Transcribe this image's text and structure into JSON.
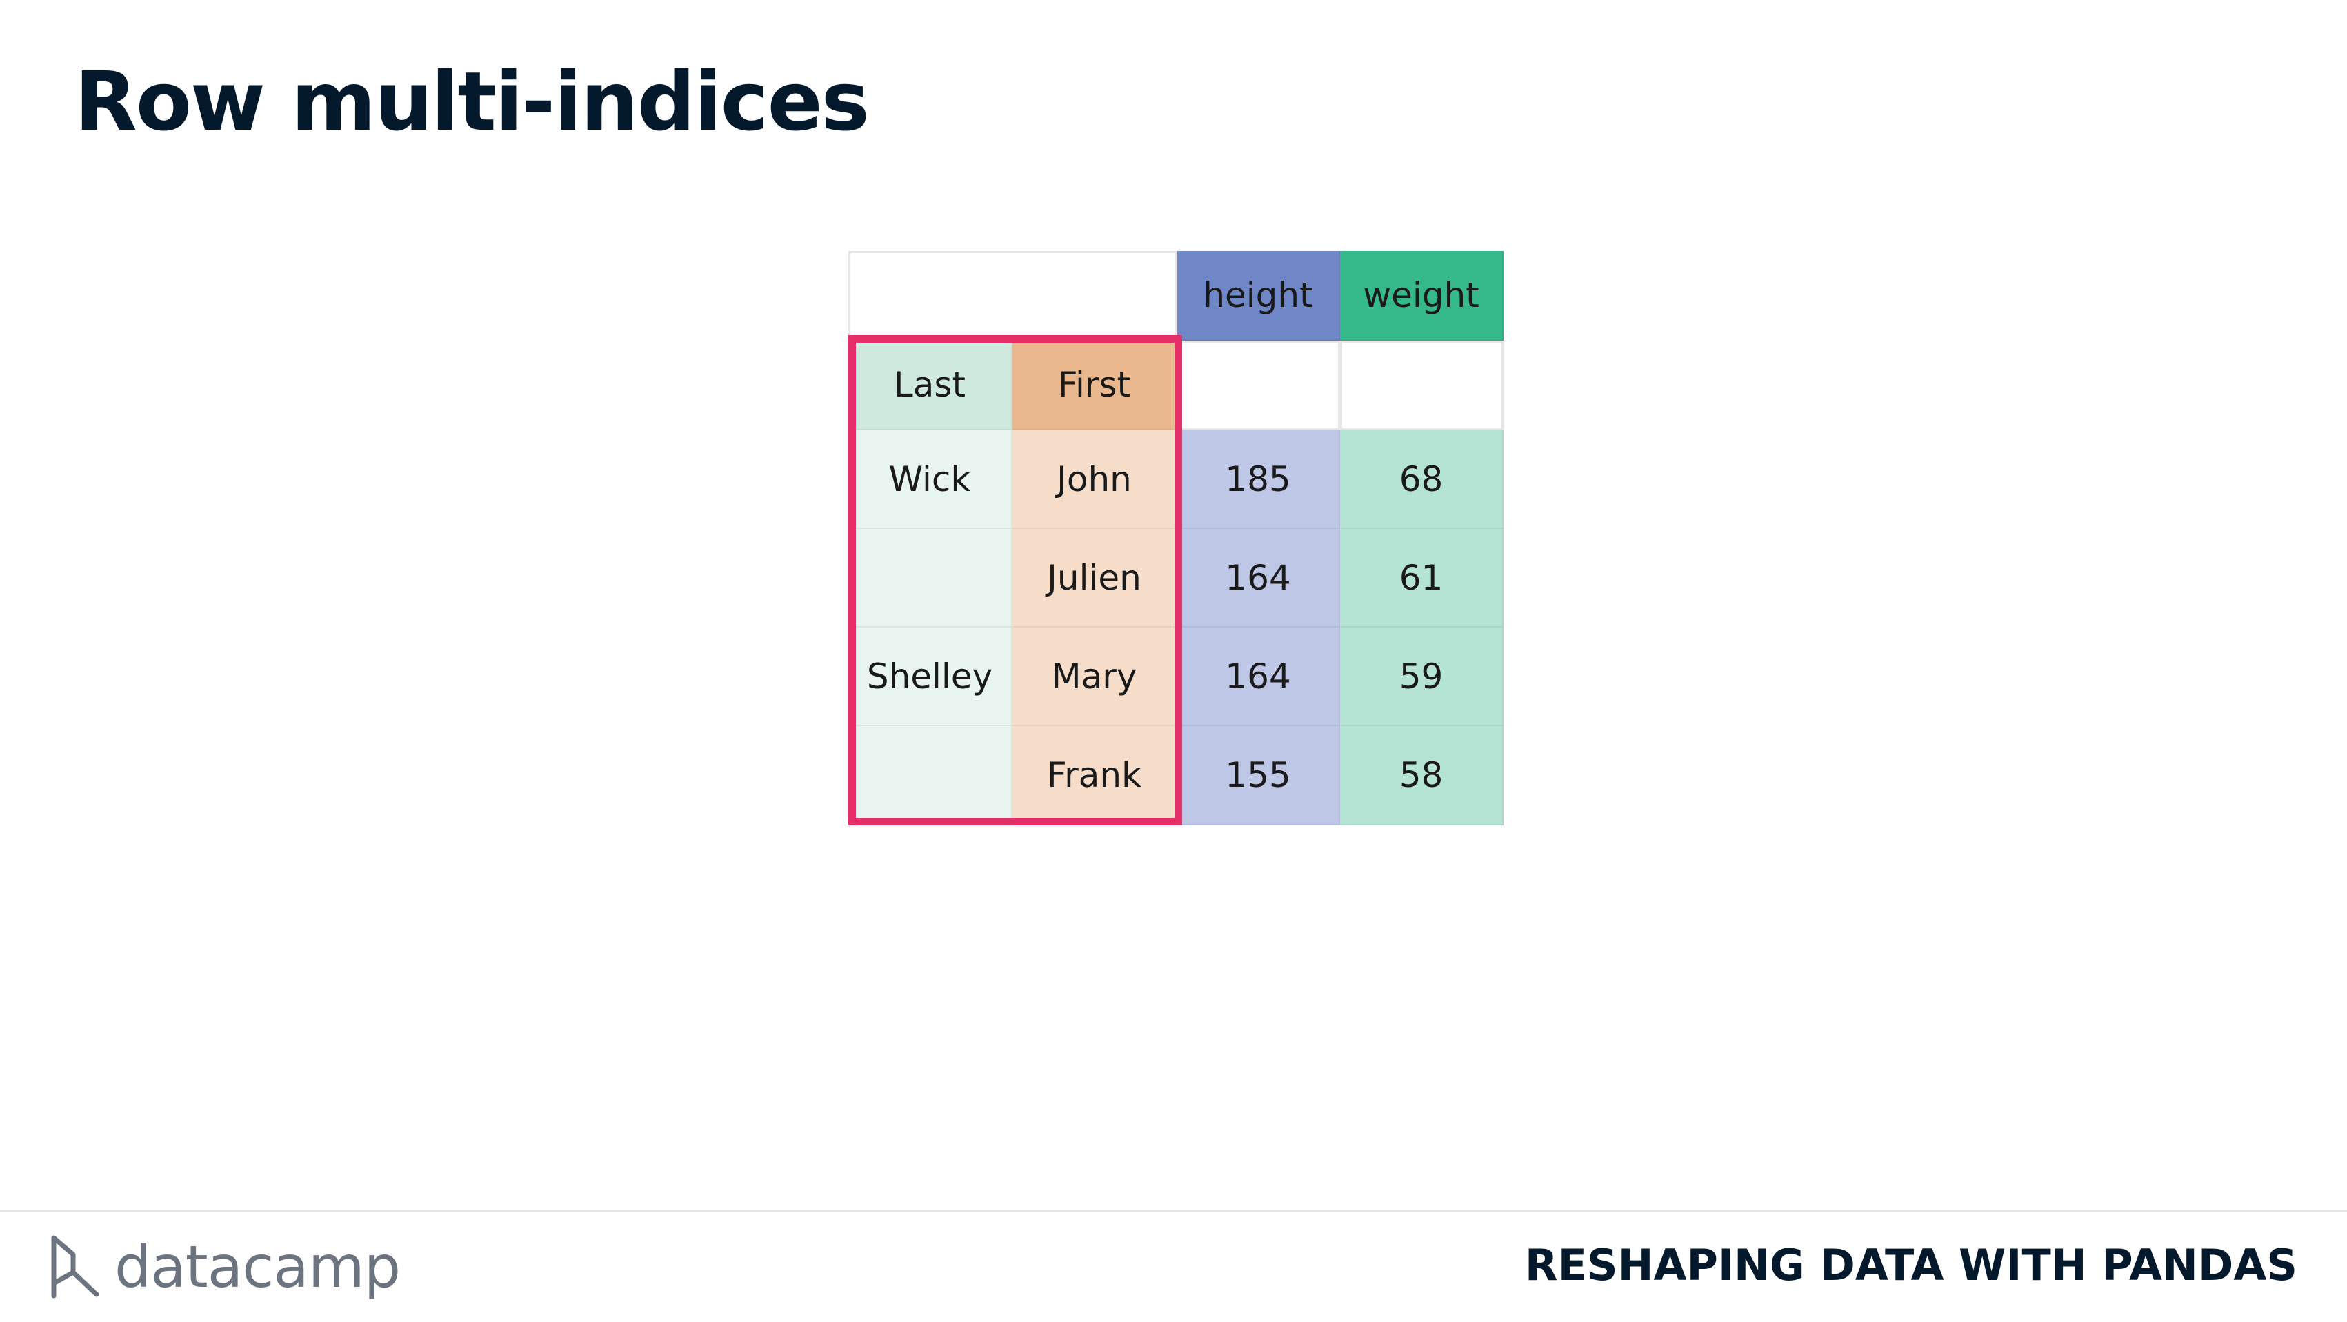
{
  "slide": {
    "title": "Row multi-indices"
  },
  "table": {
    "column_headers": {
      "height": "height",
      "weight": "weight"
    },
    "index_headers": {
      "last": "Last",
      "first": "First"
    },
    "rows": [
      {
        "last": "Wick",
        "first": "John",
        "height": "185",
        "weight": "68"
      },
      {
        "last": "",
        "first": "Julien",
        "height": "164",
        "weight": "61"
      },
      {
        "last": "Shelley",
        "first": "Mary",
        "height": "164",
        "weight": "59"
      },
      {
        "last": "",
        "first": "Frank",
        "height": "155",
        "weight": "58"
      }
    ],
    "colors": {
      "height_header": "#6f87c6",
      "weight_header": "#35b98a",
      "last_header": "#cfe9df",
      "first_header": "#e9b88e",
      "highlight_outline": "#e62e68"
    }
  },
  "footer": {
    "brand": "datacamp",
    "course": "RESHAPING DATA WITH PANDAS"
  }
}
